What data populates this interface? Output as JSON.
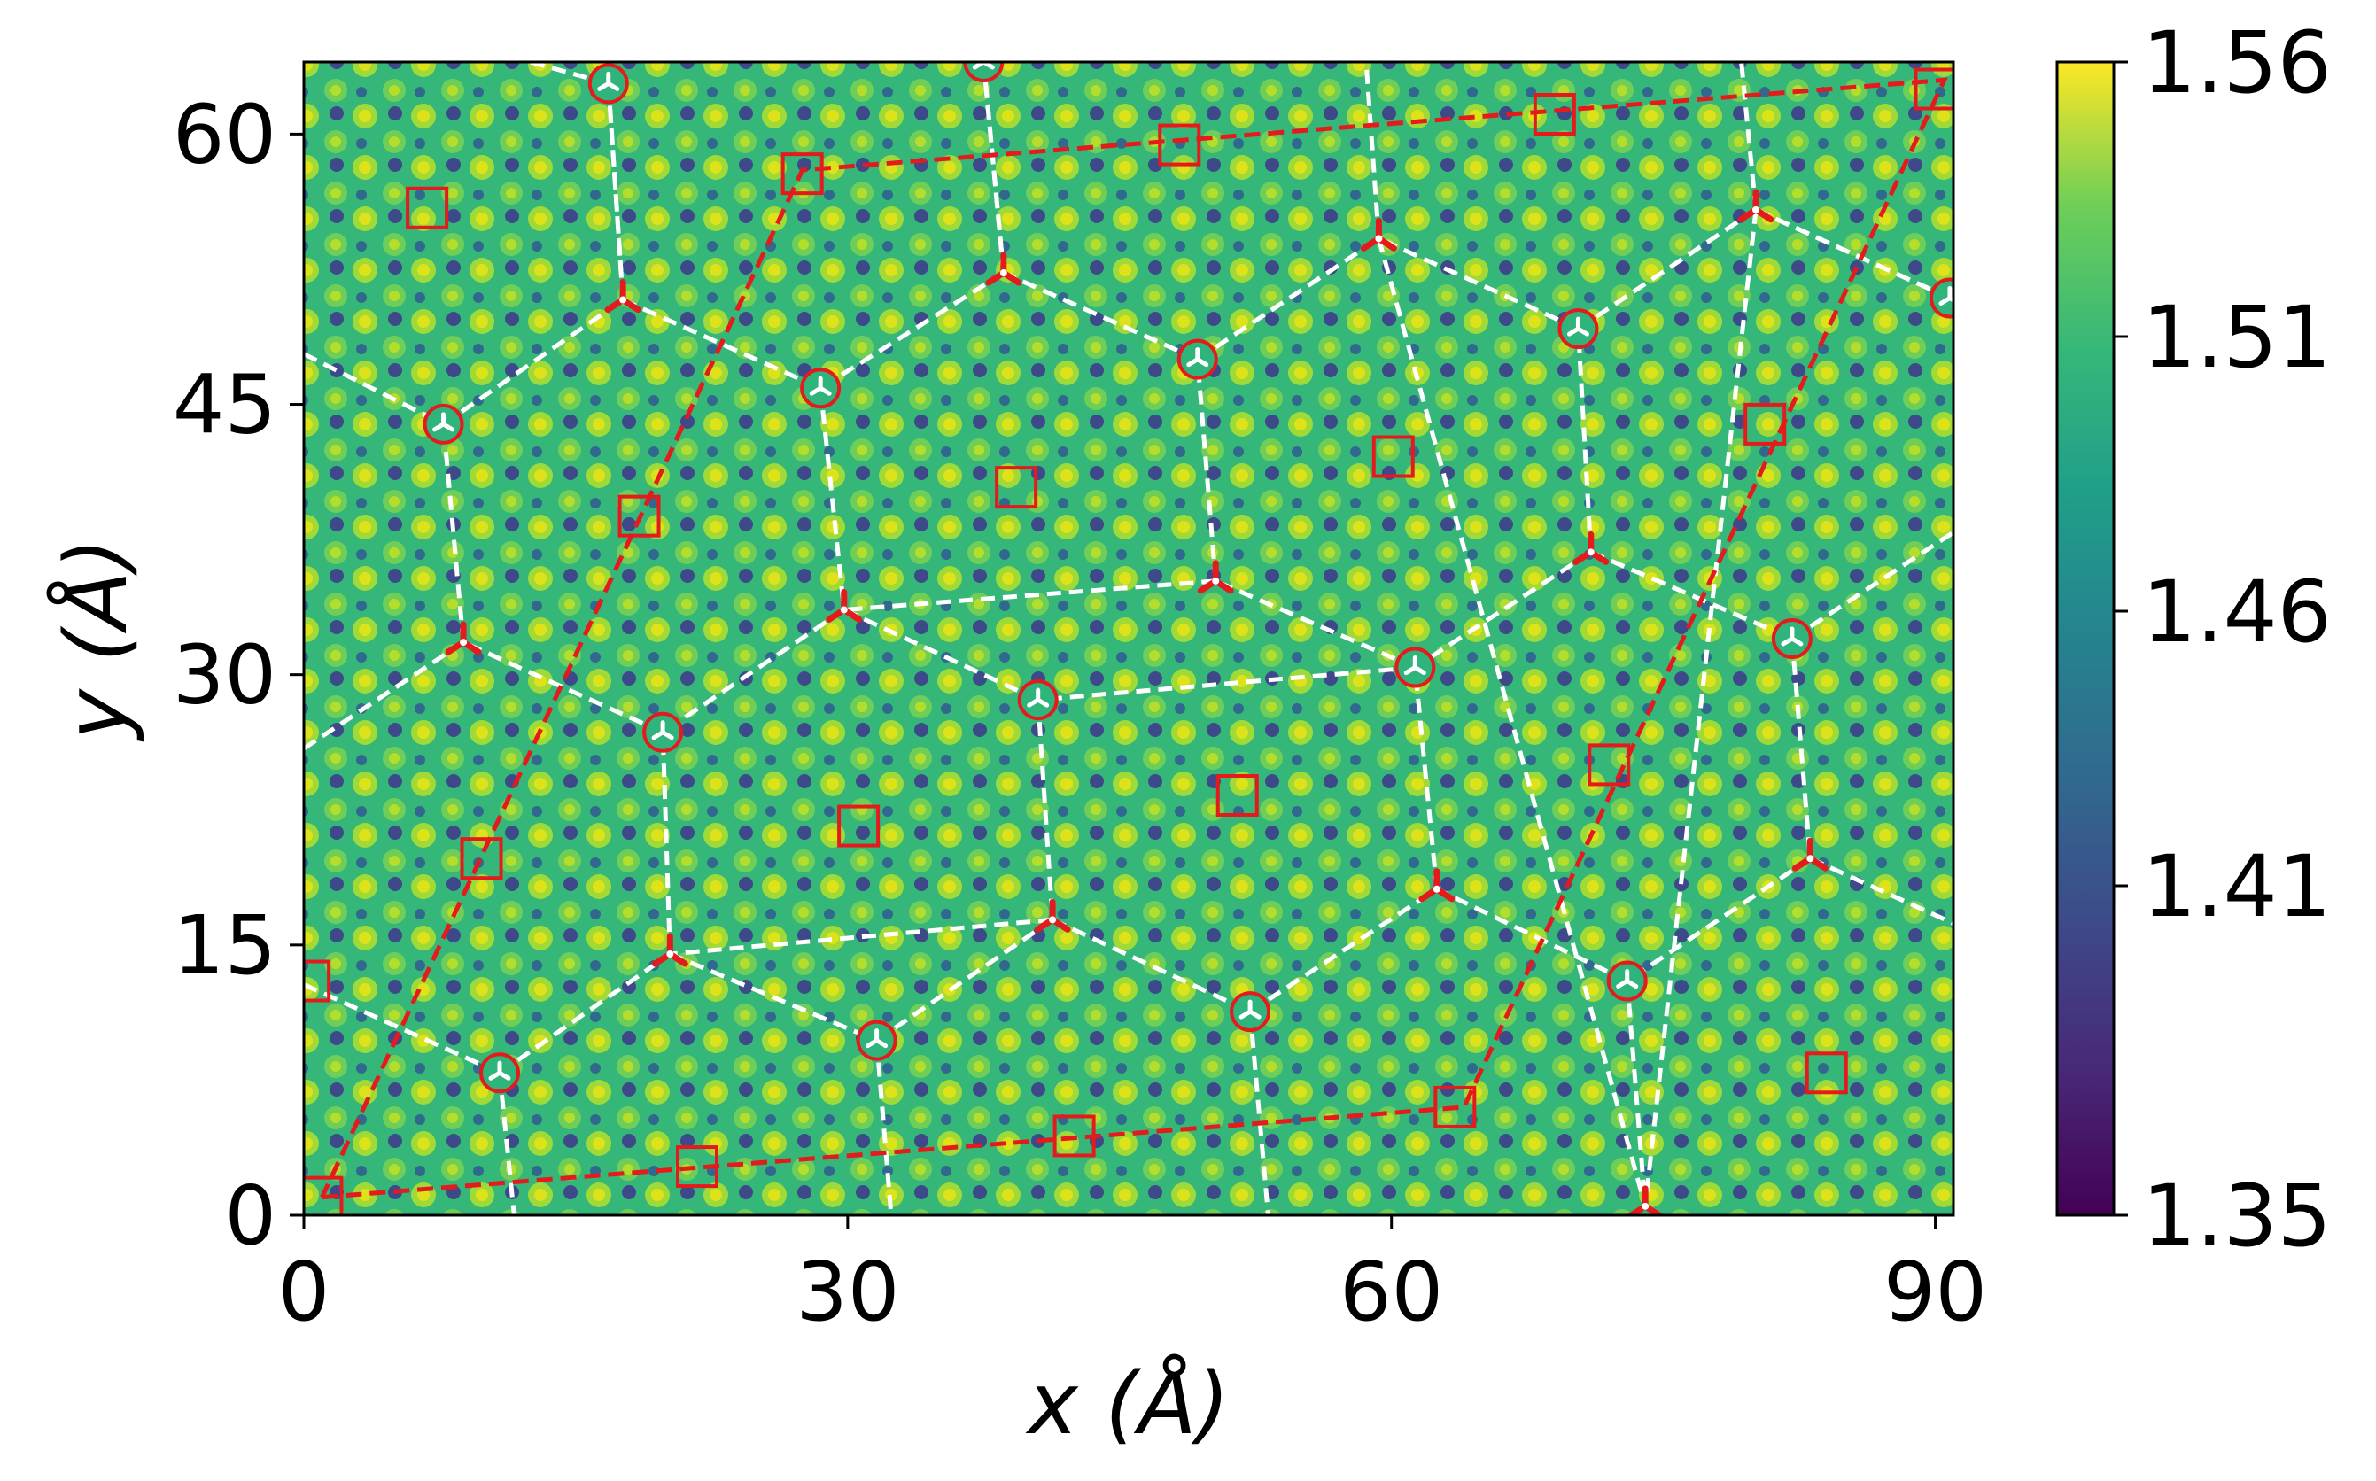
{
  "chart_data": {
    "type": "heatmap",
    "title": "",
    "xlabel": "x (Å)",
    "ylabel": "y (Å)",
    "xlim": [
      0,
      91
    ],
    "ylim": [
      0,
      64
    ],
    "xticks": [
      0,
      30,
      60,
      90
    ],
    "xtick_labels": [
      "0",
      "30",
      "60",
      "90"
    ],
    "yticks": [
      0,
      15,
      30,
      45,
      60
    ],
    "ytick_labels": [
      "0",
      "15",
      "30",
      "45",
      "60"
    ],
    "colorbar": {
      "colormap": "viridis",
      "range": [
        1.35,
        1.56
      ],
      "ticks": [
        1.35,
        1.41,
        1.46,
        1.51,
        1.56
      ],
      "tick_labels": [
        "1.35",
        "1.41",
        "1.46",
        "1.51",
        "1.56"
      ]
    },
    "colors": {
      "hexagon_lines": "#ffffff",
      "supercell_lines": "#e41a1c",
      "circle_markers": "#e41a1c",
      "square_markers": "#e41a1c",
      "tri_markers": "#e41a1c"
    },
    "grid": false,
    "legend": "none",
    "supercell_outline": [
      [
        1,
        1
      ],
      [
        64,
        6
      ],
      [
        90.5,
        63
      ],
      [
        27.5,
        58
      ],
      [
        1,
        1
      ]
    ],
    "hexagon_vertices": [
      [
        10.8,
        7.9
      ],
      [
        20.2,
        14.5
      ],
      [
        19.8,
        26.8
      ],
      [
        8.8,
        31.8
      ],
      [
        7.7,
        43.9
      ],
      [
        17.6,
        50.8
      ],
      [
        28.5,
        45.9
      ],
      [
        29.8,
        33.6
      ],
      [
        40.5,
        28.6
      ],
      [
        41.3,
        16.4
      ],
      [
        31.6,
        9.7
      ],
      [
        52.2,
        11.3
      ],
      [
        62.5,
        18.1
      ],
      [
        61.3,
        30.4
      ],
      [
        50.3,
        35.2
      ],
      [
        49.3,
        47.5
      ],
      [
        59.3,
        54.2
      ],
      [
        38.6,
        52.3
      ],
      [
        71.0,
        36.8
      ],
      [
        70.3,
        49.2
      ],
      [
        80.1,
        55.8
      ],
      [
        90.8,
        50.9
      ],
      [
        82.1,
        32.0
      ],
      [
        83.1,
        19.8
      ],
      [
        73.0,
        13.0
      ],
      [
        16.8,
        62.8
      ],
      [
        37.5,
        64.0
      ],
      [
        74.0,
        0.5
      ]
    ],
    "hexagon_edges": [
      [
        0,
        1
      ],
      [
        1,
        2
      ],
      [
        2,
        3
      ],
      [
        3,
        4
      ],
      [
        4,
        5
      ],
      [
        5,
        6
      ],
      [
        6,
        7
      ],
      [
        7,
        2
      ],
      [
        7,
        8
      ],
      [
        8,
        9
      ],
      [
        9,
        1
      ],
      [
        9,
        11
      ],
      [
        11,
        12
      ],
      [
        12,
        13
      ],
      [
        13,
        8
      ],
      [
        13,
        14
      ],
      [
        14,
        15
      ],
      [
        15,
        16
      ],
      [
        15,
        17
      ],
      [
        17,
        6
      ],
      [
        14,
        7
      ],
      [
        1,
        10
      ],
      [
        10,
        9
      ],
      [
        18,
        13
      ],
      [
        18,
        19
      ],
      [
        19,
        20
      ],
      [
        20,
        21
      ],
      [
        19,
        16
      ],
      [
        18,
        22
      ],
      [
        22,
        23
      ],
      [
        23,
        24
      ],
      [
        24,
        12
      ],
      [
        5,
        25
      ],
      [
        17,
        26
      ],
      [
        16,
        27
      ],
      [
        20,
        27
      ]
    ],
    "hexagon_open_edges": [
      [
        [
          0,
          25.9
        ],
        [
          8.8,
          31.8
        ]
      ],
      [
        [
          0,
          47.8
        ],
        [
          7.7,
          43.9
        ]
      ],
      [
        [
          0,
          12.8
        ],
        [
          10.8,
          7.9
        ]
      ],
      [
        [
          10.8,
          7.9
        ],
        [
          11.6,
          0
        ]
      ],
      [
        [
          31.6,
          9.7
        ],
        [
          32.4,
          0
        ]
      ],
      [
        [
          52.2,
          11.3
        ],
        [
          53.2,
          0
        ]
      ],
      [
        [
          73.0,
          13.0
        ],
        [
          74.0,
          0.5
        ]
      ],
      [
        [
          82.1,
          32.0
        ],
        [
          91,
          37.9
        ]
      ],
      [
        [
          83.1,
          19.8
        ],
        [
          91,
          16.2
        ]
      ],
      [
        [
          90.8,
          50.9
        ],
        [
          80.1,
          55.8
        ]
      ],
      [
        [
          16.8,
          62.8
        ],
        [
          12.5,
          64
        ]
      ],
      [
        [
          16.8,
          62.8
        ],
        [
          17.6,
          50.8
        ]
      ],
      [
        [
          37.5,
          64.0
        ],
        [
          38.6,
          52.3
        ]
      ],
      [
        [
          59.3,
          54.2
        ],
        [
          58.6,
          64
        ]
      ],
      [
        [
          80.1,
          55.8
        ],
        [
          79.3,
          64
        ]
      ]
    ],
    "circle_markers": [
      [
        10.8,
        7.9
      ],
      [
        31.6,
        9.7
      ],
      [
        52.2,
        11.3
      ],
      [
        73.0,
        13.0
      ],
      [
        19.8,
        26.8
      ],
      [
        40.5,
        28.6
      ],
      [
        61.3,
        30.4
      ],
      [
        82.1,
        32.0
      ],
      [
        7.7,
        43.9
      ],
      [
        28.5,
        45.9
      ],
      [
        49.3,
        47.5
      ],
      [
        70.3,
        49.2
      ],
      [
        90.8,
        50.9
      ],
      [
        16.8,
        62.8
      ],
      [
        37.5,
        64.0
      ]
    ],
    "tri_markers": [
      [
        20.2,
        14.5
      ],
      [
        41.3,
        16.4
      ],
      [
        62.5,
        18.1
      ],
      [
        83.1,
        19.8
      ],
      [
        8.8,
        31.8
      ],
      [
        29.8,
        33.6
      ],
      [
        50.3,
        35.2
      ],
      [
        71.0,
        36.8
      ],
      [
        17.6,
        50.8
      ],
      [
        38.6,
        52.3
      ],
      [
        59.3,
        54.2
      ],
      [
        80.1,
        55.8
      ],
      [
        74.0,
        0.5
      ]
    ],
    "square_markers": [
      [
        1,
        1
      ],
      [
        21.7,
        2.7
      ],
      [
        42.5,
        4.4
      ],
      [
        63.5,
        6.0
      ],
      [
        84.0,
        7.9
      ],
      [
        0.3,
        13.0
      ],
      [
        9.8,
        19.8
      ],
      [
        30.6,
        21.6
      ],
      [
        51.5,
        23.3
      ],
      [
        72.0,
        25.0
      ],
      [
        18.5,
        38.8
      ],
      [
        39.3,
        40.4
      ],
      [
        60.1,
        42.1
      ],
      [
        80.6,
        43.9
      ],
      [
        6.8,
        55.9
      ],
      [
        27.5,
        57.8
      ],
      [
        48.3,
        59.4
      ],
      [
        69.0,
        61.1
      ],
      [
        90.0,
        62.5
      ]
    ]
  }
}
